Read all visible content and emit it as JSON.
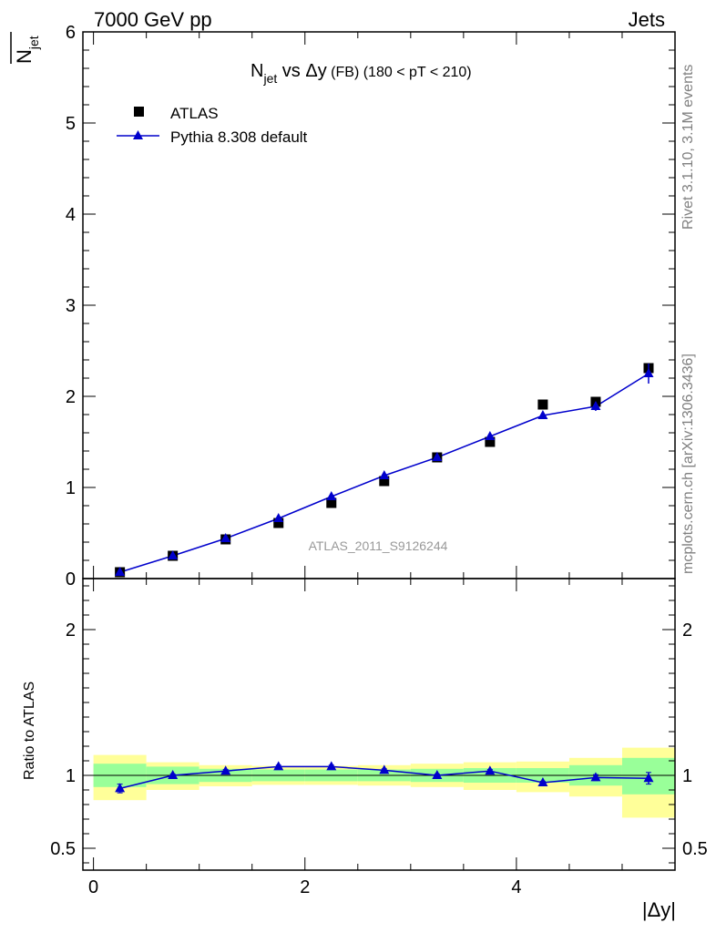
{
  "header": {
    "left": "7000 GeV pp",
    "right": "Jets"
  },
  "side_labels": {
    "rivet": "Rivet 3.1.10,  3.1M events",
    "mcplots": "mcplots.cern.ch [arXiv:1306.3436]"
  },
  "watermark": "ATLAS_2011_S9126244",
  "colors": {
    "data": "#000000",
    "mc": "#0000cc",
    "band_inner": "#99ff99",
    "band_outer": "#ffff99"
  },
  "chart_data": [
    {
      "type": "scatter",
      "panel": "main",
      "title": {
        "n": "N",
        "sub": "jet",
        "mid": " vs ",
        "dy": "Δy",
        "fb": " (FB)",
        "range": " (180 < pT < 210)"
      },
      "ylabel": {
        "n": "N",
        "sub": "jet"
      },
      "xlim": [
        -0.1,
        5.5
      ],
      "ylim": [
        0,
        6
      ],
      "yticks": [
        "0",
        "1",
        "2",
        "3",
        "4",
        "5",
        "6"
      ],
      "legend": {
        "placement": "top-left",
        "entries": [
          "ATLAS",
          "Pythia 8.308 default"
        ]
      },
      "series": [
        {
          "name": "ATLAS",
          "marker": "square",
          "x": [
            0.25,
            0.75,
            1.25,
            1.75,
            2.25,
            2.75,
            3.25,
            3.75,
            4.25,
            4.75,
            5.25
          ],
          "y": [
            0.07,
            0.25,
            0.43,
            0.61,
            0.83,
            1.07,
            1.33,
            1.5,
            1.91,
            1.94,
            2.31
          ]
        },
        {
          "name": "Pythia 8.308 default",
          "marker": "triangle",
          "x": [
            0.25,
            0.75,
            1.25,
            1.75,
            2.25,
            2.75,
            3.25,
            3.75,
            4.25,
            4.75,
            5.25
          ],
          "y": [
            0.07,
            0.25,
            0.44,
            0.66,
            0.9,
            1.13,
            1.33,
            1.56,
            1.79,
            1.89,
            2.25
          ],
          "yerr": [
            0.005,
            0.005,
            0.01,
            0.01,
            0.01,
            0.015,
            0.02,
            0.02,
            0.03,
            0.05,
            0.11
          ]
        }
      ]
    },
    {
      "type": "line",
      "panel": "ratio",
      "ylabel": "Ratio to ATLAS",
      "xlabel": "|Δy|",
      "xlim": [
        -0.1,
        5.5
      ],
      "ylim": [
        0.35,
        2.35
      ],
      "xticks": [
        "0",
        "2",
        "4"
      ],
      "yticks": [
        "0.5",
        "1",
        "2"
      ],
      "band_edges": [
        0,
        0.5,
        1.0,
        1.5,
        2.0,
        2.5,
        3.0,
        3.5,
        4.0,
        4.5,
        5.0,
        5.5
      ],
      "band_inner": {
        "lo": [
          0.92,
          0.94,
          0.955,
          0.96,
          0.96,
          0.96,
          0.955,
          0.95,
          0.95,
          0.93,
          0.87
        ],
        "hi": [
          1.08,
          1.06,
          1.045,
          1.04,
          1.04,
          1.04,
          1.045,
          1.05,
          1.05,
          1.07,
          1.12
        ]
      },
      "band_outer": {
        "lo": [
          0.83,
          0.9,
          0.925,
          0.935,
          0.935,
          0.93,
          0.92,
          0.9,
          0.885,
          0.855,
          0.71
        ],
        "hi": [
          1.14,
          1.09,
          1.07,
          1.065,
          1.065,
          1.07,
          1.08,
          1.09,
          1.095,
          1.12,
          1.19
        ]
      },
      "series": [
        {
          "name": "Pythia 8.308 default",
          "x": [
            0.25,
            0.75,
            1.25,
            1.75,
            2.25,
            2.75,
            3.25,
            3.75,
            4.25,
            4.75,
            5.25
          ],
          "y": [
            0.91,
            1.0,
            1.03,
            1.06,
            1.06,
            1.035,
            1.0,
            1.03,
            0.95,
            0.985,
            0.98
          ],
          "yerr": [
            0.03,
            0.01,
            0.01,
            0.01,
            0.01,
            0.01,
            0.01,
            0.01,
            0.01,
            0.02,
            0.04
          ]
        }
      ]
    }
  ]
}
